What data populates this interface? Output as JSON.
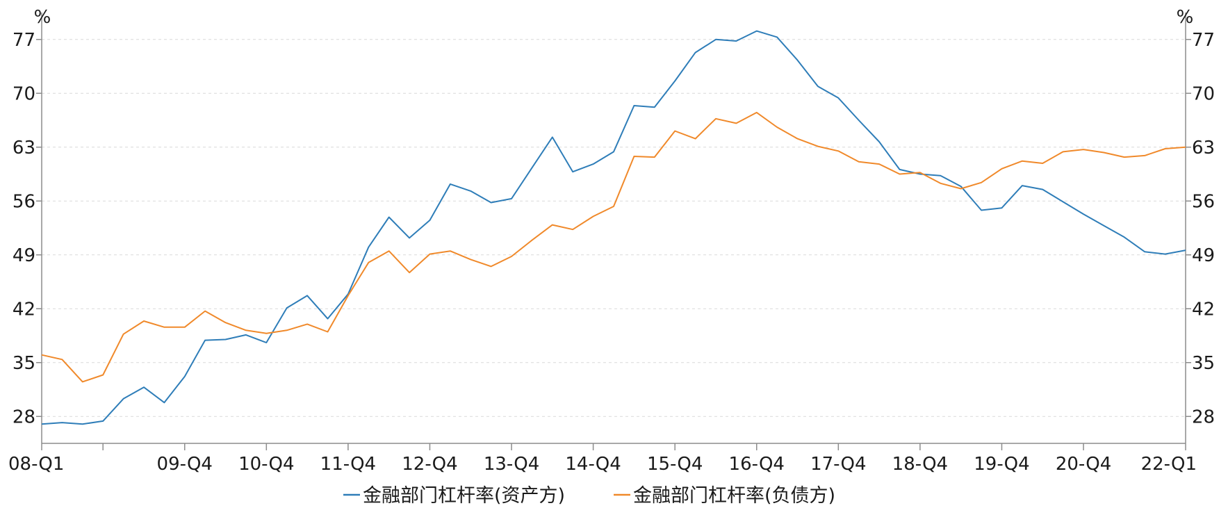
{
  "chart_data": {
    "type": "line",
    "title": "",
    "xlabel": "",
    "ylabel_left": "%",
    "ylabel_right": "%",
    "ylim": [
      24.5,
      80.5
    ],
    "yticks": [
      28,
      35,
      42,
      49,
      56,
      63,
      70,
      77
    ],
    "grid": true,
    "legend_position": "bottom",
    "x": [
      "08-Q1",
      "08-Q2",
      "08-Q3",
      "08-Q4",
      "09-Q1",
      "09-Q2",
      "09-Q3",
      "09-Q4",
      "10-Q1",
      "10-Q2",
      "10-Q3",
      "10-Q4",
      "11-Q1",
      "11-Q2",
      "11-Q3",
      "11-Q4",
      "12-Q1",
      "12-Q2",
      "12-Q3",
      "12-Q4",
      "13-Q1",
      "13-Q2",
      "13-Q3",
      "13-Q4",
      "14-Q1",
      "14-Q2",
      "14-Q3",
      "14-Q4",
      "15-Q1",
      "15-Q2",
      "15-Q3",
      "15-Q4",
      "16-Q1",
      "16-Q2",
      "16-Q3",
      "16-Q4",
      "17-Q1",
      "17-Q2",
      "17-Q3",
      "17-Q4",
      "18-Q1",
      "18-Q2",
      "18-Q3",
      "18-Q4",
      "19-Q1",
      "19-Q2",
      "19-Q3",
      "19-Q4",
      "20-Q1",
      "20-Q2",
      "20-Q3",
      "20-Q4",
      "21-Q1",
      "21-Q2",
      "21-Q3",
      "21-Q4",
      "22-Q1"
    ],
    "x_tick_labels": [
      {
        "index": 0,
        "label": "08-Q1"
      },
      {
        "index": 7,
        "label": "09-Q4"
      },
      {
        "index": 11,
        "label": "10-Q4"
      },
      {
        "index": 15,
        "label": "11-Q4"
      },
      {
        "index": 19,
        "label": "12-Q4"
      },
      {
        "index": 23,
        "label": "13-Q4"
      },
      {
        "index": 27,
        "label": "14-Q4"
      },
      {
        "index": 31,
        "label": "15-Q4"
      },
      {
        "index": 35,
        "label": "16-Q4"
      },
      {
        "index": 39,
        "label": "17-Q4"
      },
      {
        "index": 43,
        "label": "18-Q4"
      },
      {
        "index": 47,
        "label": "19-Q4"
      },
      {
        "index": 51,
        "label": "20-Q4"
      },
      {
        "index": 56,
        "label": "22-Q1"
      }
    ],
    "x_minor_ticks": [
      3
    ],
    "series": [
      {
        "name": "金融部门杠杆率(资产方)",
        "color": "#2e7db8",
        "values": [
          27.0,
          27.2,
          27.0,
          27.4,
          30.3,
          31.8,
          29.8,
          33.2,
          37.9,
          38.0,
          38.6,
          37.6,
          42.1,
          43.7,
          40.7,
          43.9,
          50.0,
          53.9,
          51.2,
          53.5,
          58.2,
          57.3,
          55.8,
          56.3,
          60.3,
          64.3,
          59.8,
          60.8,
          62.4,
          68.4,
          68.2,
          71.6,
          75.3,
          77.0,
          76.8,
          78.1,
          77.3,
          74.3,
          70.9,
          69.4,
          66.5,
          63.7,
          60.1,
          59.5,
          59.3,
          57.9,
          54.8,
          55.1,
          58.0,
          57.5,
          55.9,
          54.3,
          52.8,
          51.3,
          49.4,
          49.1,
          49.6
        ]
      },
      {
        "name": "金融部门杠杆率(负债方)",
        "color": "#f0892a",
        "values": [
          36.0,
          35.4,
          32.5,
          33.4,
          38.7,
          40.4,
          39.6,
          39.6,
          41.7,
          40.2,
          39.2,
          38.8,
          39.2,
          40.0,
          39.0,
          43.7,
          48.0,
          49.5,
          46.7,
          49.1,
          49.5,
          48.4,
          47.5,
          48.8,
          50.9,
          52.9,
          52.3,
          54.0,
          55.3,
          61.8,
          61.7,
          65.1,
          64.1,
          66.7,
          66.1,
          67.5,
          65.6,
          64.1,
          63.1,
          62.5,
          61.1,
          60.8,
          59.5,
          59.7,
          58.3,
          57.6,
          58.4,
          60.2,
          61.2,
          60.9,
          62.4,
          62.7,
          62.3,
          61.7,
          61.9,
          62.8,
          63.0
        ]
      }
    ]
  }
}
